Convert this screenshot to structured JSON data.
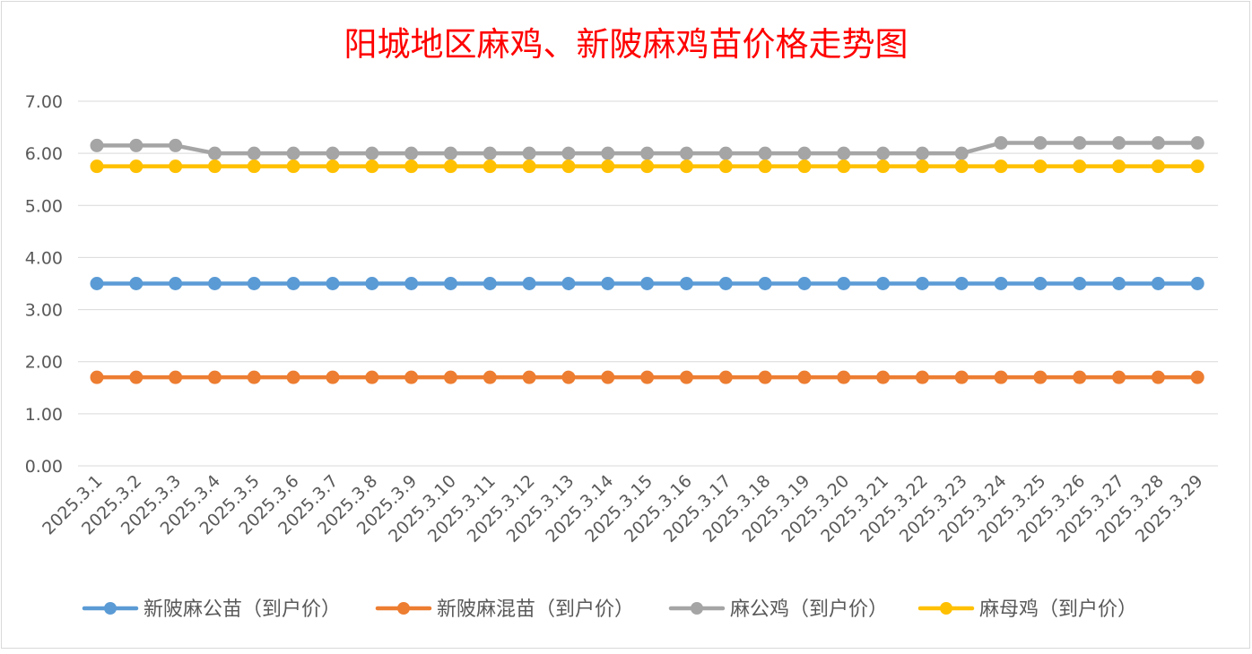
{
  "chart_data": {
    "type": "line",
    "title": "阳城地区麻鸡、新陂麻鸡苗价格走势图",
    "xlabel": "",
    "ylabel": "",
    "ylim": [
      0,
      7
    ],
    "yticks": [
      "0.00",
      "1.00",
      "2.00",
      "3.00",
      "4.00",
      "5.00",
      "6.00",
      "7.00"
    ],
    "grid": true,
    "legend_position": "bottom",
    "categories": [
      "2025.3.1",
      "2025.3.2",
      "2025.3.3",
      "2025.3.4",
      "2025.3.5",
      "2025.3.6",
      "2025.3.7",
      "2025.3.8",
      "2025.3.9",
      "2025.3.10",
      "2025.3.11",
      "2025.3.12",
      "2025.3.13",
      "2025.3.14",
      "2025.3.15",
      "2025.3.16",
      "2025.3.17",
      "2025.3.18",
      "2025.3.19",
      "2025.3.20",
      "2025.3.21",
      "2025.3.22",
      "2025.3.23",
      "2025.3.24",
      "2025.3.25",
      "2025.3.26",
      "2025.3.27",
      "2025.3.28",
      "2025.3.29"
    ],
    "series": [
      {
        "name": "新陂麻公苗（到户价）",
        "color": "#5B9BD5",
        "values": [
          3.5,
          3.5,
          3.5,
          3.5,
          3.5,
          3.5,
          3.5,
          3.5,
          3.5,
          3.5,
          3.5,
          3.5,
          3.5,
          3.5,
          3.5,
          3.5,
          3.5,
          3.5,
          3.5,
          3.5,
          3.5,
          3.5,
          3.5,
          3.5,
          3.5,
          3.5,
          3.5,
          3.5,
          3.5
        ]
      },
      {
        "name": "新陂麻混苗（到户价）",
        "color": "#ED7D31",
        "values": [
          1.7,
          1.7,
          1.7,
          1.7,
          1.7,
          1.7,
          1.7,
          1.7,
          1.7,
          1.7,
          1.7,
          1.7,
          1.7,
          1.7,
          1.7,
          1.7,
          1.7,
          1.7,
          1.7,
          1.7,
          1.7,
          1.7,
          1.7,
          1.7,
          1.7,
          1.7,
          1.7,
          1.7,
          1.7
        ]
      },
      {
        "name": "麻公鸡（到户价）",
        "color": "#A5A5A5",
        "values": [
          6.15,
          6.15,
          6.15,
          6.0,
          6.0,
          6.0,
          6.0,
          6.0,
          6.0,
          6.0,
          6.0,
          6.0,
          6.0,
          6.0,
          6.0,
          6.0,
          6.0,
          6.0,
          6.0,
          6.0,
          6.0,
          6.0,
          6.0,
          6.2,
          6.2,
          6.2,
          6.2,
          6.2,
          6.2
        ]
      },
      {
        "name": "麻母鸡（到户价）",
        "color": "#FFC000",
        "values": [
          5.75,
          5.75,
          5.75,
          5.75,
          5.75,
          5.75,
          5.75,
          5.75,
          5.75,
          5.75,
          5.75,
          5.75,
          5.75,
          5.75,
          5.75,
          5.75,
          5.75,
          5.75,
          5.75,
          5.75,
          5.75,
          5.75,
          5.75,
          5.75,
          5.75,
          5.75,
          5.75,
          5.75,
          5.75
        ]
      }
    ],
    "colors": {
      "title": "#FF0000",
      "grid": "#D9D9D9",
      "axis_text": "#595959",
      "border": "#D9D9D9"
    }
  }
}
